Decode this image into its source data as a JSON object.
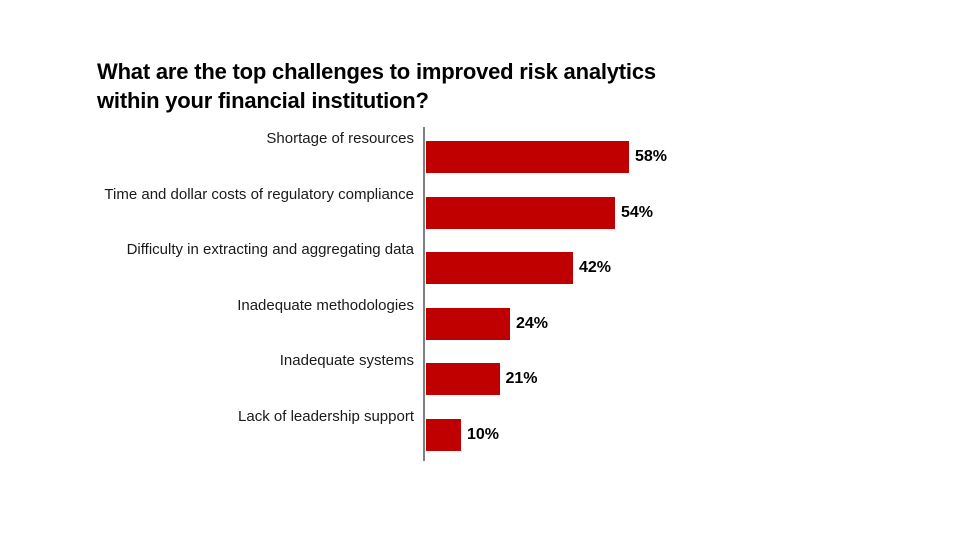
{
  "title": {
    "line1": "What are the top challenges to improved risk analytics",
    "line2": "within your financial institution?"
  },
  "chart_data": {
    "type": "bar",
    "orientation": "horizontal",
    "title": "What are the top challenges to improved risk analytics within your financial institution?",
    "categories": [
      "Shortage of resources",
      "Time and dollar costs of regulatory compliance",
      "Difficulty in extracting and aggregating data",
      "Inadequate methodologies",
      "Inadequate systems",
      "Lack of leadership support"
    ],
    "values": [
      58,
      54,
      42,
      24,
      21,
      10
    ],
    "value_labels": [
      "58%",
      "54%",
      "42%",
      "24%",
      "21%",
      "10%"
    ],
    "bar_color": "#C00000",
    "axis_line_color": "#808080",
    "label_color": "#1a1a1a",
    "value_label_color": "#000000",
    "grid": false,
    "legend": "none",
    "value_labels_position": "end-of-bar"
  }
}
